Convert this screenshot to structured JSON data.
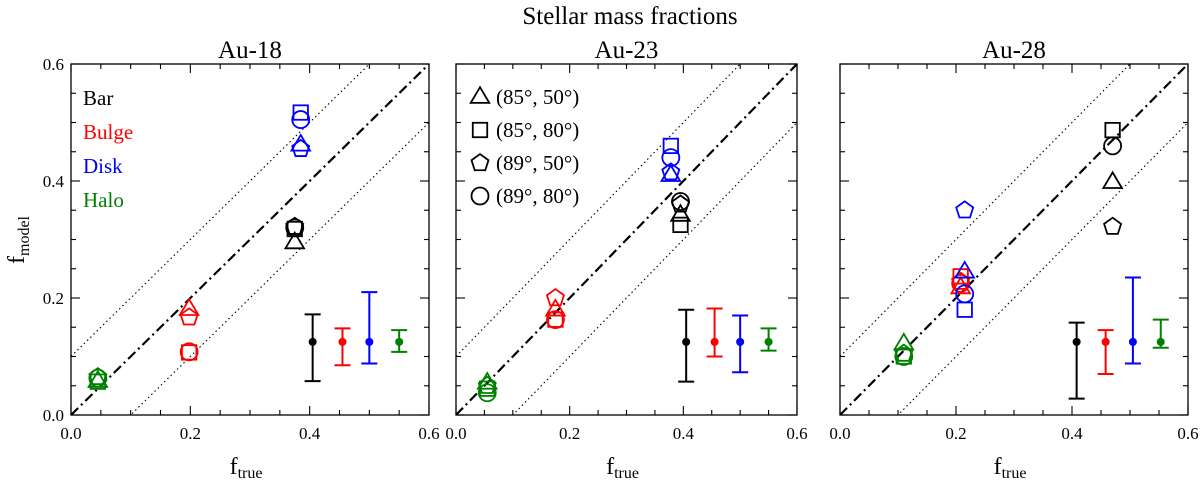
{
  "chart_data": {
    "type": "scatter",
    "title": "Stellar mass fractions",
    "xlabel": "f",
    "xlabel_sub": "true",
    "ylabel": "f",
    "ylabel_sub": "model",
    "xlim": [
      0.0,
      0.6
    ],
    "ylim": [
      0.0,
      0.6
    ],
    "xticks": [
      "0.0",
      "0.2",
      "0.4",
      "0.6"
    ],
    "yticks": [
      "0.0",
      "0.2",
      "0.4",
      "0.6"
    ],
    "reference_lines": {
      "identity": "dash-dot y = x",
      "offsets": [
        0.1,
        -0.1
      ],
      "offset_style": "dotted"
    },
    "components": [
      {
        "name": "Bar",
        "color": "#000000"
      },
      {
        "name": "Bulge",
        "color": "#ff0000"
      },
      {
        "name": "Disk",
        "color": "#0000ff"
      },
      {
        "name": "Halo",
        "color": "#008000"
      }
    ],
    "projections": [
      {
        "label": "(85°, 50°)",
        "marker": "triangle"
      },
      {
        "label": "(85°, 80°)",
        "marker": "square"
      },
      {
        "label": "(89°, 50°)",
        "marker": "pentagon"
      },
      {
        "label": "(89°, 80°)",
        "marker": "circle"
      }
    ],
    "panels": [
      {
        "title": "Au-18",
        "legend": "components",
        "points": {
          "Bar": {
            "x": 0.375,
            "y": [
              0.295,
              0.318,
              0.322,
              0.32
            ]
          },
          "Bulge": {
            "x": 0.198,
            "y": [
              0.181,
              0.107,
              0.167,
              0.108
            ]
          },
          "Disk": {
            "x": 0.385,
            "y": [
              0.462,
              0.517,
              0.455,
              0.505
            ]
          },
          "Halo": {
            "x": 0.045,
            "y": [
              0.058,
              0.057,
              0.065,
              0.063
            ]
          }
        },
        "errorbars": [
          {
            "component": "Bar",
            "x": 0.405,
            "y": 0.125,
            "low": 0.058,
            "high": 0.172
          },
          {
            "component": "Bulge",
            "x": 0.455,
            "y": 0.125,
            "low": 0.085,
            "high": 0.148
          },
          {
            "component": "Disk",
            "x": 0.5,
            "y": 0.125,
            "low": 0.088,
            "high": 0.21
          },
          {
            "component": "Halo",
            "x": 0.55,
            "y": 0.125,
            "low": 0.108,
            "high": 0.145
          }
        ]
      },
      {
        "title": "Au-23",
        "legend": "projections",
        "points": {
          "Bar": {
            "x": 0.395,
            "y": [
              0.342,
              0.325,
              0.36,
              0.365
            ]
          },
          "Bulge": {
            "x": 0.175,
            "y": [
              0.18,
              0.163,
              0.2,
              0.163
            ]
          },
          "Disk": {
            "x": 0.378,
            "y": [
              0.41,
              0.46,
              0.415,
              0.44
            ]
          },
          "Halo": {
            "x": 0.055,
            "y": [
              0.055,
              0.045,
              0.05,
              0.038
            ]
          }
        },
        "errorbars": [
          {
            "component": "Bar",
            "x": 0.405,
            "y": 0.125,
            "low": 0.057,
            "high": 0.18
          },
          {
            "component": "Bulge",
            "x": 0.455,
            "y": 0.125,
            "low": 0.1,
            "high": 0.182
          },
          {
            "component": "Disk",
            "x": 0.5,
            "y": 0.125,
            "low": 0.073,
            "high": 0.17
          },
          {
            "component": "Halo",
            "x": 0.55,
            "y": 0.125,
            "low": 0.11,
            "high": 0.148
          }
        ]
      },
      {
        "title": "Au-28",
        "legend": "none",
        "points": {
          "Bar": {
            "x": 0.47,
            "y": [
              0.398,
              0.487,
              0.322,
              0.46
            ]
          },
          "Bulge": {
            "x": 0.208,
            "y": [
              0.218,
              0.237,
              0.228,
              0.225
            ]
          },
          "Disk": {
            "x": 0.215,
            "y": [
              0.245,
              0.18,
              0.35,
              0.207
            ]
          },
          "Halo": {
            "x": 0.11,
            "y": [
              0.122,
              0.1,
              0.105,
              0.1
            ]
          }
        },
        "errorbars": [
          {
            "component": "Bar",
            "x": 0.408,
            "y": 0.125,
            "low": 0.028,
            "high": 0.158
          },
          {
            "component": "Bulge",
            "x": 0.458,
            "y": 0.125,
            "low": 0.07,
            "high": 0.145
          },
          {
            "component": "Disk",
            "x": 0.505,
            "y": 0.125,
            "low": 0.088,
            "high": 0.235
          },
          {
            "component": "Halo",
            "x": 0.553,
            "y": 0.125,
            "low": 0.115,
            "high": 0.163
          }
        ]
      }
    ]
  }
}
